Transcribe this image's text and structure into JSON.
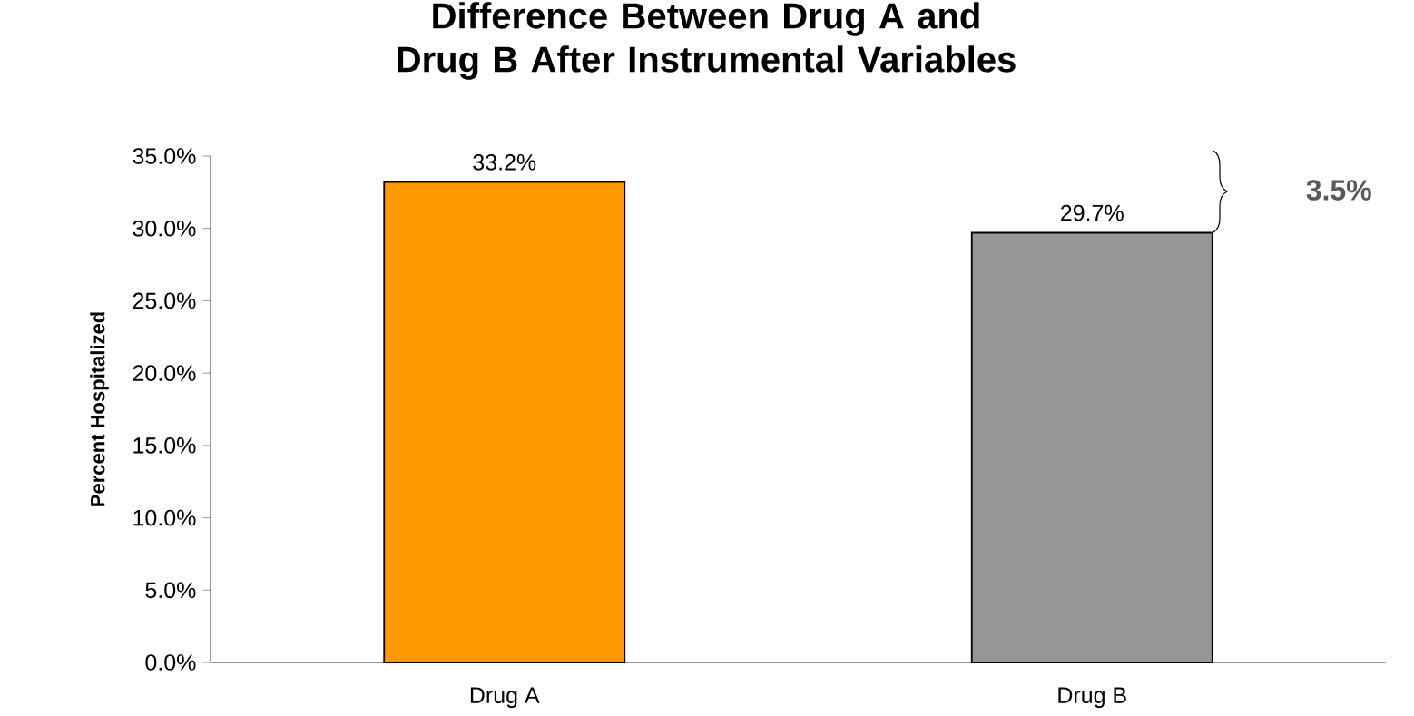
{
  "chart_data": {
    "type": "bar",
    "title": "Difference Between Drug A and Drug B After Instrumental Variables",
    "ylabel": "Percent Hospitalized",
    "categories": [
      "Drug A",
      "Drug B"
    ],
    "values": [
      33.2,
      29.7
    ],
    "colors": [
      "#ff9900",
      "#969696"
    ],
    "value_labels": [
      "33.2%",
      "29.7%"
    ],
    "ylim": [
      0,
      35
    ],
    "yticks": [
      {
        "value": 0,
        "label": "0.0%"
      },
      {
        "value": 5,
        "label": "5.0%"
      },
      {
        "value": 10,
        "label": "10.0%"
      },
      {
        "value": 15,
        "label": "15.0%"
      },
      {
        "value": 20,
        "label": "20.0%"
      },
      {
        "value": 25,
        "label": "25.0%"
      },
      {
        "value": 30,
        "label": "30.0%"
      },
      {
        "value": 35,
        "label": "35.0%"
      }
    ],
    "annotations": [
      "3.5%"
    ],
    "grid": false
  }
}
